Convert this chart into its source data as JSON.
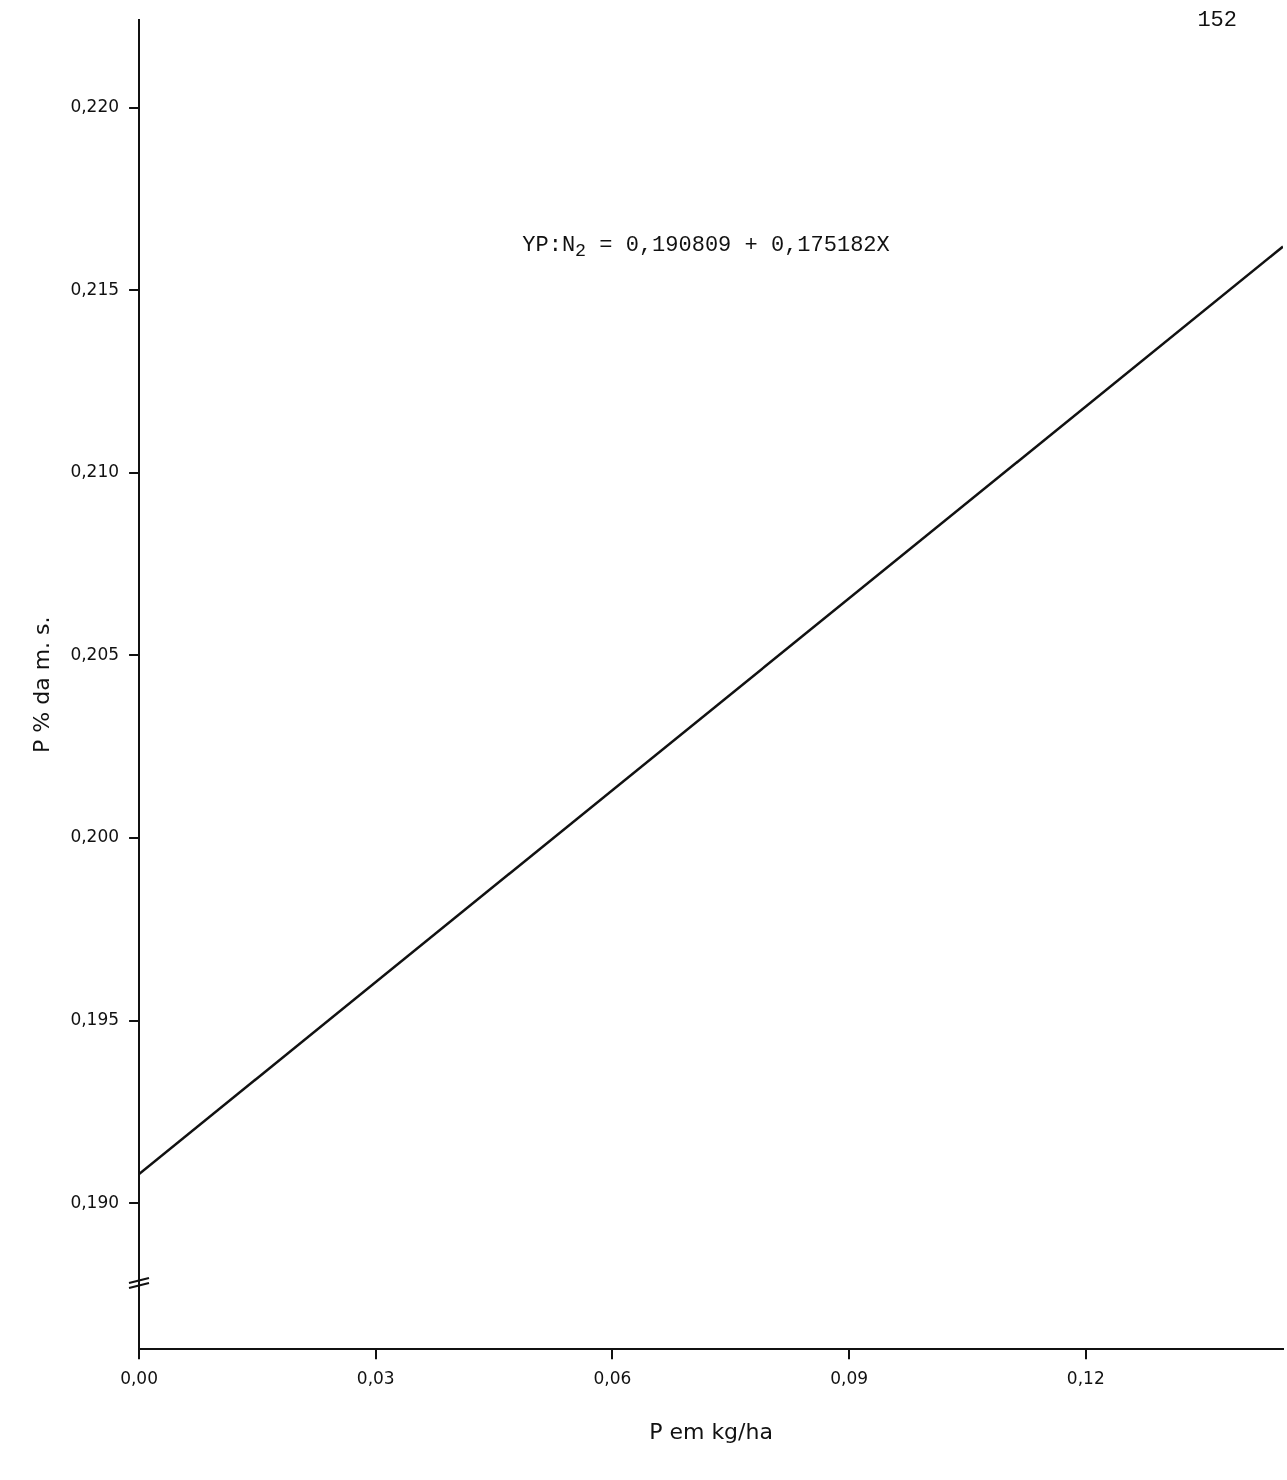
{
  "chart_data": {
    "type": "line",
    "xlabel": "P em kg/ha",
    "ylabel": "P % da m. s.",
    "annotations": [
      "YP:N$_{2}$ = 0,190809 + 0,175182X",
      "152"
    ],
    "x": [
      0,
      0.145
    ],
    "series": [
      {
        "color": "#111111",
        "values": [
          0.1908,
          0.2162
        ]
      }
    ],
    "xlim": [
      0,
      0.145
    ],
    "ylim": [
      0.186,
      0.2224
    ],
    "xticks": [
      {
        "value": 0,
        "label": "0,00"
      },
      {
        "value": 0.03,
        "label": "0,03"
      },
      {
        "value": 0.06,
        "label": "0,06"
      },
      {
        "value": 0.09,
        "label": "0,09"
      },
      {
        "value": 0.12,
        "label": "0,12"
      }
    ],
    "yticks": [
      {
        "value": 0.19,
        "label": "0,190"
      },
      {
        "value": 0.195,
        "label": "0,195"
      },
      {
        "value": 0.2,
        "label": "0,200"
      },
      {
        "value": 0.205,
        "label": "0,205"
      },
      {
        "value": 0.21,
        "label": "0,210"
      },
      {
        "value": 0.215,
        "label": "0,215"
      },
      {
        "value": 0.22,
        "label": "0,220"
      }
    ],
    "marker": "none",
    "line_style": "solid"
  }
}
